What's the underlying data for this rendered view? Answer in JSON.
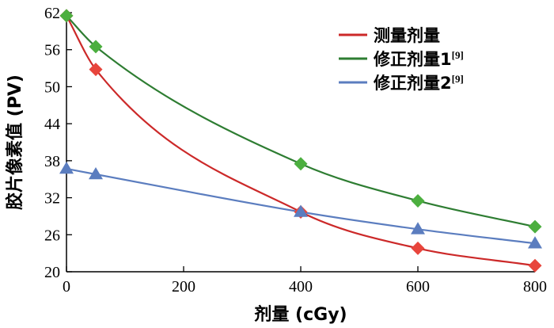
{
  "chart_data": {
    "type": "line",
    "xlabel": "剂量 (cGy)",
    "ylabel": "胶片像素值 (PV)",
    "xlim": [
      0,
      800
    ],
    "ylim": [
      20,
      62
    ],
    "xticks": [
      0,
      200,
      400,
      600,
      800
    ],
    "yticks": [
      20,
      26,
      32,
      38,
      44,
      50,
      56,
      62
    ],
    "grid": false,
    "legend_position": "top-right",
    "series": [
      {
        "name": "测量剂量",
        "ref": "",
        "color": "#cc2929",
        "marker_color": "#e8453c",
        "marker": "diamond",
        "x": [
          0,
          50,
          400,
          600,
          800
        ],
        "y": [
          61.5,
          52.8,
          29.7,
          23.8,
          21.0
        ]
      },
      {
        "name": "修正剂量1",
        "ref": "[9]",
        "color": "#2e7d32",
        "marker_color": "#4caf3f",
        "marker": "diamond",
        "x": [
          0,
          50,
          400,
          600,
          800
        ],
        "y": [
          61.5,
          56.5,
          37.5,
          31.5,
          27.3
        ]
      },
      {
        "name": "修正剂量2",
        "ref": "[9]",
        "color": "#5b7dbf",
        "marker_color": "#5b7dbf",
        "marker": "triangle",
        "x": [
          0,
          50,
          400,
          600,
          800
        ],
        "y": [
          36.7,
          35.8,
          29.7,
          26.9,
          24.6
        ]
      }
    ]
  }
}
